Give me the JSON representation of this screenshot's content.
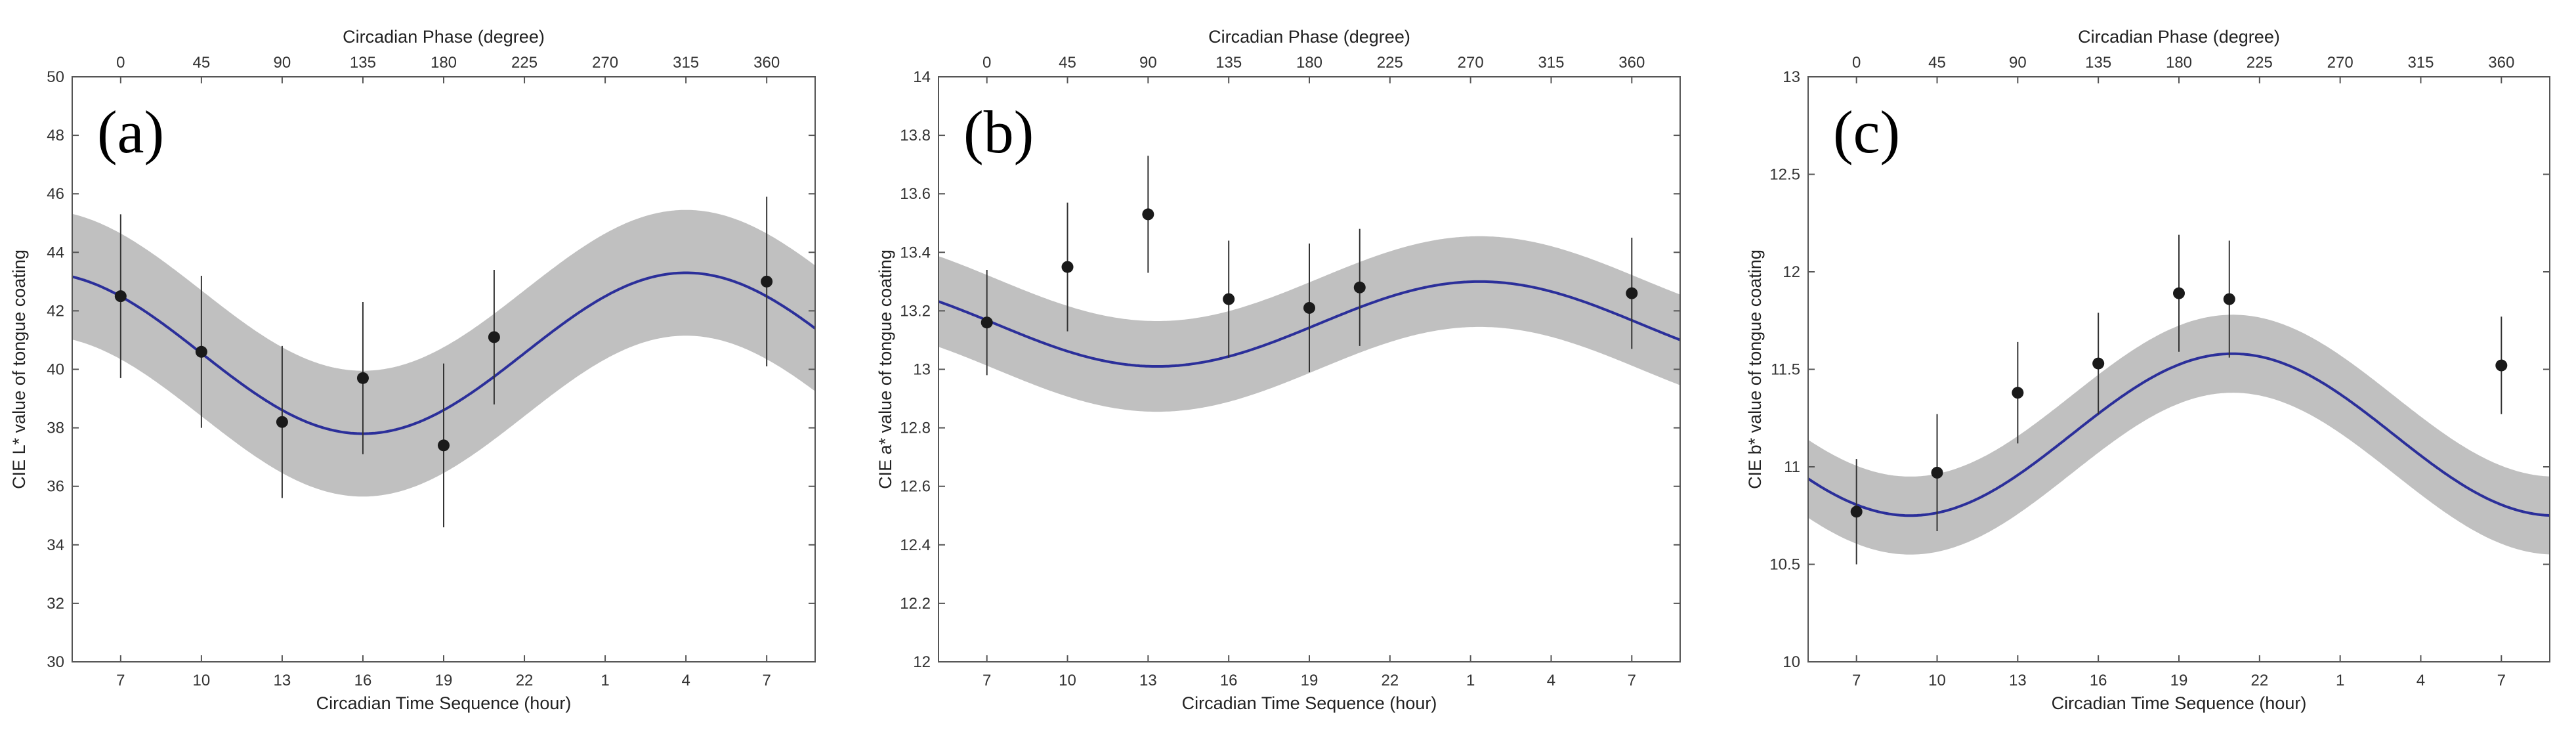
{
  "colors": {
    "band": "#c0c0c0",
    "fit_line": "#2b2f9a",
    "marker": "#1a1a1a",
    "error_bar": "#333333",
    "frame": "#555555"
  },
  "chart_data": [
    {
      "type": "scatter",
      "panel_label": "(a)",
      "title": "",
      "top_axis_label": "Circadian Phase (degree)",
      "top_ticks": [
        "0",
        "45",
        "90",
        "135",
        "180",
        "225",
        "270",
        "315",
        "360"
      ],
      "xlabel": "Circadian Time Sequence (hour)",
      "x_ticks": [
        "7",
        "10",
        "13",
        "16",
        "19",
        "22",
        "1",
        "4",
        "7"
      ],
      "xlim": [
        -6,
        86
      ],
      "ylabel": "CIE L* value of tongue coating",
      "ylim": [
        30,
        50
      ],
      "y_ticks": [
        "30",
        "32",
        "34",
        "36",
        "38",
        "40",
        "42",
        "44",
        "46",
        "48",
        "50"
      ],
      "series": [
        {
          "name": "observed",
          "x": [
            0,
            10,
            20,
            30,
            40,
            46.25,
            80
          ],
          "y": [
            42.5,
            40.6,
            38.2,
            39.7,
            37.4,
            41.1,
            43.0
          ],
          "yerr": [
            2.8,
            2.6,
            2.6,
            2.6,
            2.8,
            2.3,
            2.9
          ]
        },
        {
          "name": "cosinor fit",
          "mesor": 40.55,
          "amplitude": 2.75,
          "acrophase_deg": 315,
          "ci_halfwidth": 2.15
        }
      ]
    },
    {
      "type": "scatter",
      "panel_label": "(b)",
      "title": "",
      "top_axis_label": "Circadian Phase (degree)",
      "top_ticks": [
        "0",
        "45",
        "90",
        "135",
        "180",
        "225",
        "270",
        "315",
        "360"
      ],
      "xlabel": "Circadian Time Sequence (hour)",
      "x_ticks": [
        "7",
        "10",
        "13",
        "16",
        "19",
        "22",
        "1",
        "4",
        "7"
      ],
      "xlim": [
        -6,
        86
      ],
      "ylabel": "CIE a* value of tongue coating",
      "ylim": [
        12,
        14
      ],
      "y_ticks": [
        "12",
        "12.2",
        "12.4",
        "12.6",
        "12.8",
        "13",
        "13.2",
        "13.4",
        "13.6",
        "13.8",
        "14"
      ],
      "series": [
        {
          "name": "observed",
          "x": [
            0,
            10,
            20,
            30,
            40,
            46.25,
            80
          ],
          "y": [
            13.16,
            13.35,
            13.53,
            13.24,
            13.21,
            13.28,
            13.26
          ],
          "yerr": [
            0.18,
            0.22,
            0.2,
            0.2,
            0.22,
            0.2,
            0.19
          ]
        },
        {
          "name": "cosinor fit",
          "mesor": 13.155,
          "amplitude": 0.145,
          "acrophase_deg": 275,
          "ci_halfwidth": 0.155
        }
      ]
    },
    {
      "type": "scatter",
      "panel_label": "(c)",
      "title": "",
      "top_axis_label": "Circadian Phase (degree)",
      "top_ticks": [
        "0",
        "45",
        "90",
        "135",
        "180",
        "225",
        "270",
        "315",
        "360"
      ],
      "xlabel": "Circadian Time Sequence (hour)",
      "x_ticks": [
        "7",
        "10",
        "13",
        "16",
        "19",
        "22",
        "1",
        "4",
        "7"
      ],
      "xlim": [
        -6,
        86
      ],
      "ylabel": "CIE b* value of tongue coating",
      "ylim": [
        10,
        13
      ],
      "y_ticks": [
        "10",
        "10.5",
        "11",
        "11.5",
        "12",
        "12.5",
        "13"
      ],
      "series": [
        {
          "name": "observed",
          "x": [
            0,
            10,
            20,
            30,
            40,
            46.25,
            80
          ],
          "y": [
            10.77,
            10.97,
            11.38,
            11.53,
            11.89,
            11.86,
            11.52
          ],
          "yerr": [
            0.27,
            0.3,
            0.26,
            0.26,
            0.3,
            0.3,
            0.25
          ]
        },
        {
          "name": "cosinor fit",
          "mesor": 11.165,
          "amplitude": 0.415,
          "acrophase_deg": 210,
          "ci_halfwidth": 0.2
        }
      ]
    }
  ]
}
